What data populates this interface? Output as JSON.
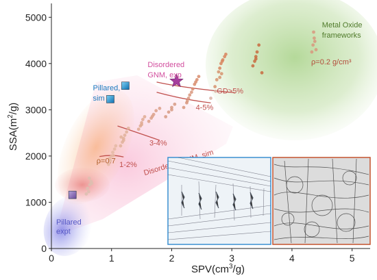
{
  "chart_data": {
    "type": "scatter",
    "title": "",
    "xlabel": {
      "main": "SPV(cm",
      "sup": "3",
      "tail": "/g)"
    },
    "ylabel": {
      "main": "SSA(m",
      "sup": "2",
      "tail": "/g)"
    },
    "xlim": [
      0,
      5.3
    ],
    "ylim": [
      0,
      5300
    ],
    "xticks": [
      "0",
      "1",
      "2",
      "3",
      "4",
      "5"
    ],
    "yticks": [
      "0",
      "1000",
      "2000",
      "3000",
      "4000",
      "5000"
    ],
    "grid": false,
    "regions": [
      {
        "name": "metal-oxide-frameworks",
        "color": "#9ccc78"
      },
      {
        "name": "disordered-gnm-sim",
        "color": "#f7a8c8"
      },
      {
        "name": "pillared-expt",
        "color": "#8d8ee8"
      },
      {
        "name": "orange-band",
        "color": "#f6a25a"
      },
      {
        "name": "red-blob",
        "color": "#e05a5a"
      }
    ],
    "series": [
      {
        "name": "",
        "color": "#dcc0b0",
        "points": [
          [
            0.62,
            1230
          ],
          [
            0.6,
            1300
          ],
          [
            0.64,
            1380
          ],
          [
            0.66,
            1450
          ],
          [
            0.58,
            1180
          ],
          [
            0.63,
            1520
          ],
          [
            0.67,
            1410
          ]
        ]
      },
      {
        "name": "",
        "color": "#e4b9a3",
        "points": [
          [
            0.95,
            1820
          ],
          [
            0.98,
            1900
          ],
          [
            1.0,
            2000
          ],
          [
            1.02,
            2080
          ],
          [
            1.05,
            2150
          ],
          [
            0.97,
            1950
          ],
          [
            1.03,
            2010
          ],
          [
            1.07,
            2220
          ]
        ]
      },
      {
        "name": "",
        "color": "#e0b29a",
        "points": [
          [
            1.15,
            2220
          ],
          [
            1.18,
            2300
          ],
          [
            1.2,
            2380
          ],
          [
            1.22,
            2450
          ],
          [
            1.25,
            2520
          ],
          [
            1.28,
            2600
          ],
          [
            1.2,
            2340
          ],
          [
            1.16,
            2410
          ]
        ]
      },
      {
        "name": "",
        "color": "#dfaa92",
        "points": [
          [
            1.45,
            2580
          ],
          [
            1.48,
            2650
          ],
          [
            1.5,
            2720
          ],
          [
            1.52,
            2790
          ],
          [
            1.55,
            2850
          ],
          [
            1.5,
            2680
          ]
        ]
      },
      {
        "name": "",
        "color": "#dca08a",
        "points": [
          [
            1.62,
            2750
          ],
          [
            1.66,
            2820
          ],
          [
            1.7,
            2900
          ],
          [
            1.74,
            2980
          ],
          [
            1.8,
            3030
          ],
          [
            1.68,
            2860
          ]
        ]
      },
      {
        "name": "",
        "color": "#d79a82",
        "points": [
          [
            1.9,
            2850
          ],
          [
            1.95,
            2950
          ],
          [
            2.0,
            3050
          ],
          [
            2.05,
            3120
          ],
          [
            2.0,
            3000
          ]
        ]
      },
      {
        "name": "",
        "color": "#d8967c",
        "points": [
          [
            2.2,
            3050
          ],
          [
            2.25,
            3150
          ],
          [
            2.28,
            3250
          ],
          [
            2.3,
            3320
          ],
          [
            2.26,
            3190
          ],
          [
            2.33,
            3380
          ]
        ]
      },
      {
        "name": "",
        "color": "#d88c6c",
        "points": [
          [
            2.35,
            3450
          ],
          [
            2.38,
            3550
          ],
          [
            2.42,
            3650
          ],
          [
            2.45,
            3720
          ],
          [
            2.4,
            3600
          ]
        ]
      },
      {
        "name": "",
        "color": "#d6936f",
        "points": [
          [
            2.75,
            3650
          ],
          [
            2.8,
            3700
          ],
          [
            2.83,
            3780
          ],
          [
            2.78,
            3820
          ],
          [
            2.72,
            3500
          ]
        ]
      },
      {
        "name": "",
        "color": "#d8845e",
        "points": [
          [
            2.8,
            3900
          ],
          [
            2.82,
            4000
          ],
          [
            2.85,
            4080
          ],
          [
            2.88,
            4150
          ],
          [
            2.9,
            4200
          ],
          [
            2.84,
            4050
          ]
        ]
      },
      {
        "name": "",
        "color": "#c86a40",
        "points": [
          [
            3.35,
            3950
          ],
          [
            3.38,
            4050
          ],
          [
            3.4,
            4150
          ],
          [
            3.42,
            4250
          ],
          [
            3.45,
            4400
          ],
          [
            3.4,
            4100
          ],
          [
            3.5,
            3800
          ]
        ]
      },
      {
        "name": "",
        "color": "#d8987e",
        "points": [
          [
            4.33,
            4250
          ],
          [
            4.35,
            4400
          ],
          [
            4.37,
            4550
          ],
          [
            4.36,
            4680
          ],
          [
            4.38,
            4480
          ],
          [
            4.4,
            4300
          ]
        ]
      },
      {
        "name": "",
        "color": "#d9b3a5",
        "points": [
          [
            2.73,
            3400
          ],
          [
            2.65,
            3250
          ]
        ]
      }
    ],
    "markers": [
      {
        "name": "disordered-gnm-exp",
        "shape": "star",
        "x": 2.08,
        "y": 3620,
        "color": "#a63e9e"
      },
      {
        "name": "pillared-sim-1",
        "shape": "square",
        "x": 1.23,
        "y": 3520,
        "color": "#1b9ad6"
      },
      {
        "name": "pillared-sim-2",
        "shape": "square",
        "x": 0.98,
        "y": 3230,
        "color": "#1b9ad6"
      },
      {
        "name": "pillared-expt",
        "shape": "square",
        "x": 0.35,
        "y": 1160,
        "color": "#8c6bb8"
      }
    ],
    "boundaries": [
      {
        "name": "boundary-1-2",
        "color": "#c0504d",
        "points": [
          [
            0.8,
            1990
          ],
          [
            1.0,
            2040
          ],
          [
            1.2,
            1980
          ]
        ]
      },
      {
        "name": "boundary-3-4",
        "color": "#c0504d",
        "points": [
          [
            1.1,
            2650
          ],
          [
            1.4,
            2520
          ],
          [
            1.8,
            2340
          ]
        ]
      },
      {
        "name": "boundary-4-5",
        "color": "#c0504d",
        "points": [
          [
            1.75,
            3380
          ],
          [
            2.2,
            3220
          ],
          [
            2.65,
            3150
          ]
        ]
      },
      {
        "name": "boundary-gd5",
        "color": "#c0504d",
        "points": [
          [
            1.75,
            3600
          ],
          [
            2.2,
            3470
          ],
          [
            3.05,
            3370
          ]
        ]
      }
    ],
    "annotations": [
      {
        "name": "metal-oxide-line-1",
        "text": "Metal Oxide",
        "x": 4.5,
        "y": 4780,
        "color": "#4f7a2a",
        "anchor": "start"
      },
      {
        "name": "metal-oxide-line-2",
        "text": "frameworks",
        "x": 4.5,
        "y": 4560,
        "color": "#4f7a2a",
        "anchor": "start"
      },
      {
        "name": "density-label",
        "text": "ρ=0.2 g/cm³",
        "x": 4.32,
        "y": 3980,
        "color": "#b34b3a",
        "anchor": "start"
      },
      {
        "name": "disordered-exp-line-1",
        "text": "Disordered",
        "x": 1.6,
        "y": 3920,
        "color": "#d24e9e",
        "anchor": "start"
      },
      {
        "name": "disordered-exp-line-2",
        "text": "GNM, exp",
        "x": 1.6,
        "y": 3700,
        "color": "#d24e9e",
        "anchor": "start"
      },
      {
        "name": "pillared-sim-line-1",
        "text": "Pillared,",
        "x": 0.69,
        "y": 3420,
        "color": "#1a79bf",
        "anchor": "start"
      },
      {
        "name": "pillared-sim-line-2",
        "text": "sim",
        "x": 0.69,
        "y": 3200,
        "color": "#1a79bf",
        "anchor": "start"
      },
      {
        "name": "gd-label",
        "text": "GD>5%",
        "x": 2.75,
        "y": 3350,
        "color": "#c0504d",
        "anchor": "start"
      },
      {
        "name": "pct-4-5",
        "text": "4-5%",
        "x": 2.4,
        "y": 3000,
        "color": "#c0504d",
        "anchor": "start"
      },
      {
        "name": "pct-3-4",
        "text": "3-4%",
        "x": 1.63,
        "y": 2230,
        "color": "#c0504d",
        "anchor": "start"
      },
      {
        "name": "pct-1-2",
        "text": "1-2%",
        "x": 1.13,
        "y": 1760,
        "color": "#c0504d",
        "anchor": "start"
      },
      {
        "name": "rho-label",
        "text": "ρ=0.7",
        "x": 0.75,
        "y": 1840,
        "color": "#b0602a",
        "anchor": "start"
      },
      {
        "name": "pillared-expt-line-1",
        "text": "Pillared",
        "x": 0.08,
        "y": 520,
        "color": "#5557c4",
        "anchor": "start"
      },
      {
        "name": "pillared-expt-line-2",
        "text": "expt",
        "x": 0.08,
        "y": 320,
        "color": "#5557c4",
        "anchor": "start"
      }
    ],
    "rotated_annotation": {
      "text": "Disordered GNM, sim",
      "x": 1.55,
      "y": 1580,
      "angle": -17,
      "color": "#c0504d"
    }
  }
}
